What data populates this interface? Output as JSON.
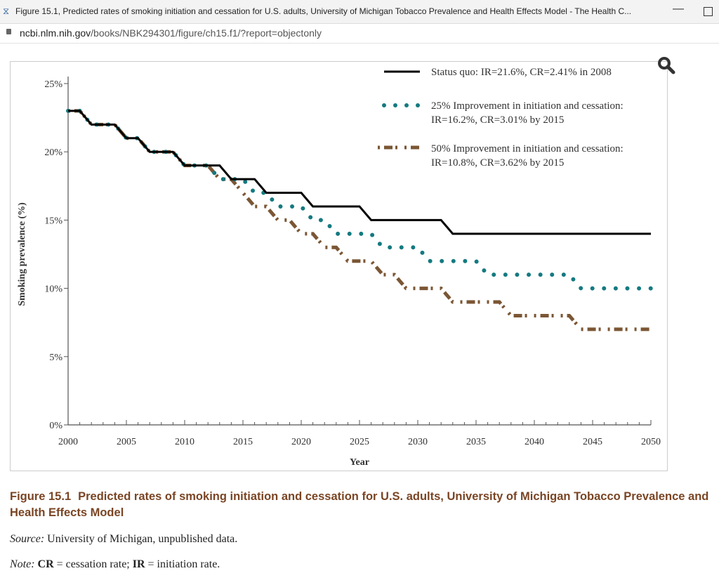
{
  "window": {
    "title": "Figure 15.1, Predicted rates of smoking initiation and cessation for U.S. adults, University of Michigan Tobacco Prevalence and Health Effects Model - The Health C...",
    "url_domain": "ncbi.nlm.nih.gov",
    "url_path": "/books/NBK294301/figure/ch15.f1/?report=objectonly"
  },
  "chart_data": {
    "type": "line",
    "title": "",
    "xlabel": "Year",
    "ylabel": "Smoking prevalence (%)",
    "xlim": [
      2000,
      2050
    ],
    "ylim": [
      0,
      25
    ],
    "xticks": [
      "2000",
      "2005",
      "2010",
      "2015",
      "2020",
      "2025",
      "2030",
      "2035",
      "2040",
      "2045",
      "2050"
    ],
    "yticks": [
      "0%",
      "5%",
      "10%",
      "15%",
      "20%",
      "25%"
    ],
    "legend_position": "top-right",
    "x": [
      2000,
      2001,
      2002,
      2003,
      2004,
      2005,
      2006,
      2007,
      2008,
      2009,
      2010,
      2011,
      2012,
      2013,
      2014,
      2015,
      2016,
      2017,
      2018,
      2019,
      2020,
      2021,
      2022,
      2023,
      2024,
      2025,
      2026,
      2027,
      2028,
      2029,
      2030,
      2031,
      2032,
      2033,
      2034,
      2035,
      2036,
      2037,
      2038,
      2039,
      2040,
      2041,
      2042,
      2043,
      2044,
      2045,
      2046,
      2047,
      2048,
      2049,
      2050
    ],
    "series": [
      {
        "name": "Status quo: IR=21.6%, CR=2.41% in 2008",
        "style": "solid",
        "color": "#000000",
        "values": [
          23,
          23,
          22,
          22,
          22,
          21,
          21,
          20,
          20,
          20,
          19,
          19,
          19,
          19,
          18,
          18,
          18,
          17,
          17,
          17,
          17,
          16,
          16,
          16,
          16,
          16,
          15,
          15,
          15,
          15,
          15,
          15,
          15,
          14,
          14,
          14,
          14,
          14,
          14,
          14,
          14,
          14,
          14,
          14,
          14,
          14,
          14,
          14,
          14,
          14,
          14
        ]
      },
      {
        "name": "25% Improvement in initiation and cessation:",
        "name2": "IR=16.2%, CR=3.01% by 2015",
        "style": "dotted",
        "color": "#147a80",
        "values": [
          23,
          23,
          22,
          22,
          22,
          21,
          21,
          20,
          20,
          20,
          19,
          19,
          19,
          18,
          18,
          18,
          17,
          17,
          16,
          16,
          16,
          15,
          15,
          14,
          14,
          14,
          14,
          13,
          13,
          13,
          13,
          12,
          12,
          12,
          12,
          12,
          11,
          11,
          11,
          11,
          11,
          11,
          11,
          11,
          10,
          10,
          10,
          10,
          10,
          10,
          10
        ]
      },
      {
        "name": "50% Improvement in initiation and cessation:",
        "name2": "IR=10.8%, CR=3.62% by 2015",
        "style": "dashdot",
        "color": "#7b5634",
        "values": [
          23,
          23,
          22,
          22,
          22,
          21,
          21,
          20,
          20,
          20,
          19,
          19,
          19,
          18,
          18,
          17,
          16,
          16,
          15,
          15,
          14,
          14,
          13,
          13,
          12,
          12,
          12,
          11,
          11,
          10,
          10,
          10,
          10,
          9,
          9,
          9,
          9,
          9,
          8,
          8,
          8,
          8,
          8,
          8,
          7,
          7,
          7,
          7,
          7,
          7,
          7
        ]
      }
    ]
  },
  "caption": {
    "number": "Figure 15.1",
    "text": "Predicted rates of smoking initiation and cessation for U.S. adults, University of Michigan Tobacco Prevalence and Health Effects Model"
  },
  "source": {
    "label": "Source:",
    "text": " University of Michigan, unpublished data."
  },
  "note": {
    "label": "Note:",
    "cr": "CR",
    "cr_text": " = cessation rate; ",
    "ir": "IR",
    "ir_text": " = initiation rate."
  }
}
